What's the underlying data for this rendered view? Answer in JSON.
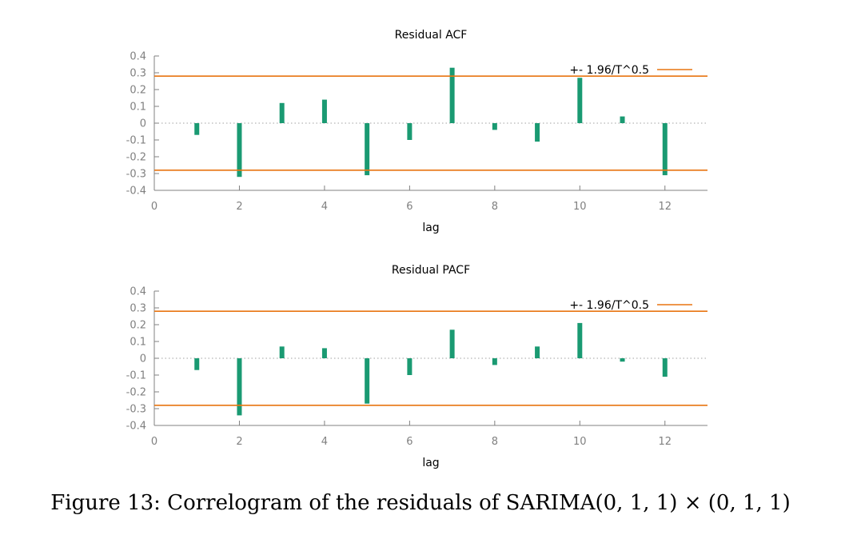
{
  "chart_data": [
    {
      "type": "bar",
      "title": "Residual ACF",
      "xlabel": "lag",
      "ylabel": "",
      "xlim": [
        0,
        13
      ],
      "ylim": [
        -0.4,
        0.4
      ],
      "xticks": [
        "0",
        "2",
        "4",
        "6",
        "8",
        "10",
        "12"
      ],
      "yticks": [
        "0.4",
        "0.3",
        "0.2",
        "0.1",
        "0",
        "-0.1",
        "-0.2",
        "-0.3",
        "-0.4"
      ],
      "x": [
        1,
        2,
        3,
        4,
        5,
        6,
        7,
        8,
        9,
        10,
        11,
        12
      ],
      "values": [
        -0.07,
        -0.32,
        0.12,
        0.14,
        -0.31,
        -0.1,
        0.33,
        -0.04,
        -0.11,
        0.27,
        0.04,
        -0.31
      ],
      "bound": 0.28,
      "legend": {
        "label": "+- 1.96/T^0.5",
        "position": "top-right"
      },
      "colors": {
        "bars": "#1a9a72",
        "bound": "#e87511",
        "axis": "#808080",
        "zero": "#a0a0a0"
      }
    },
    {
      "type": "bar",
      "title": "Residual PACF",
      "xlabel": "lag",
      "ylabel": "",
      "xlim": [
        0,
        13
      ],
      "ylim": [
        -0.4,
        0.4
      ],
      "xticks": [
        "0",
        "2",
        "4",
        "6",
        "8",
        "10",
        "12"
      ],
      "yticks": [
        "0.4",
        "0.3",
        "0.2",
        "0.1",
        "0",
        "-0.1",
        "-0.2",
        "-0.3",
        "-0.4"
      ],
      "x": [
        1,
        2,
        3,
        4,
        5,
        6,
        7,
        8,
        9,
        10,
        11,
        12
      ],
      "values": [
        -0.07,
        -0.34,
        0.07,
        0.06,
        -0.27,
        -0.1,
        0.17,
        -0.04,
        0.07,
        0.21,
        -0.02,
        -0.11
      ],
      "bound": 0.28,
      "legend": {
        "label": "+- 1.96/T^0.5",
        "position": "top-right"
      },
      "colors": {
        "bars": "#1a9a72",
        "bound": "#e87511",
        "axis": "#808080",
        "zero": "#a0a0a0"
      }
    }
  ],
  "caption": "Figure 13: Correlogram of the residuals of SARIMA(0, 1, 1) × (0, 1, 1)"
}
